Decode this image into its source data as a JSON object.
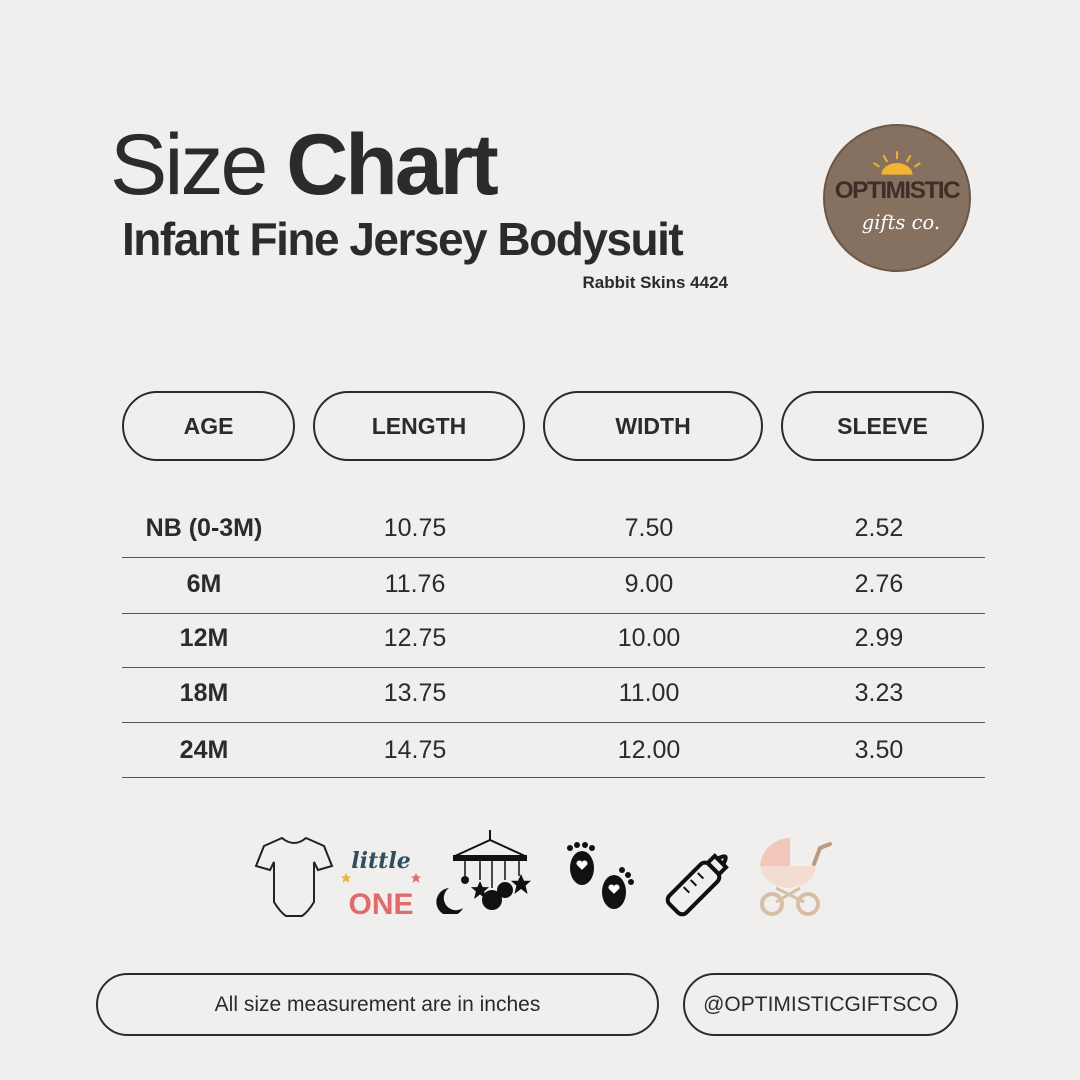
{
  "header": {
    "title_light": "Size",
    "title_bold": "Chart",
    "subtitle": "Infant Fine Jersey Bodysuit",
    "model": "Rabbit Skins 4424"
  },
  "logo": {
    "text_main": "OPTIMISTIC",
    "text_script": "gifts co.",
    "colors": {
      "circle": "#86705f",
      "sun": "#f2b233"
    }
  },
  "table": {
    "headers": [
      "AGE",
      "LENGTH",
      "WIDTH",
      "SLEEVE"
    ],
    "rows": [
      [
        "NB (0-3M)",
        "10.75",
        "7.50",
        "2.52"
      ],
      [
        "6M",
        "11.76",
        "9.00",
        "2.76"
      ],
      [
        "12M",
        "12.75",
        "10.00",
        "2.99"
      ],
      [
        "18M",
        "13.75",
        "11.00",
        "3.23"
      ],
      [
        "24M",
        "14.75",
        "12.00",
        "3.50"
      ]
    ]
  },
  "icons": [
    "bodysuit-icon",
    "little-one-lettering-icon",
    "baby-mobile-icon",
    "baby-footprints-icon",
    "baby-bottle-icon",
    "baby-stroller-icon"
  ],
  "icon_text": {
    "little": "little",
    "one": "ONE"
  },
  "footer": {
    "note": "All size measurement are in inches",
    "handle": "@OPTIMISTICGIFTSCO"
  }
}
